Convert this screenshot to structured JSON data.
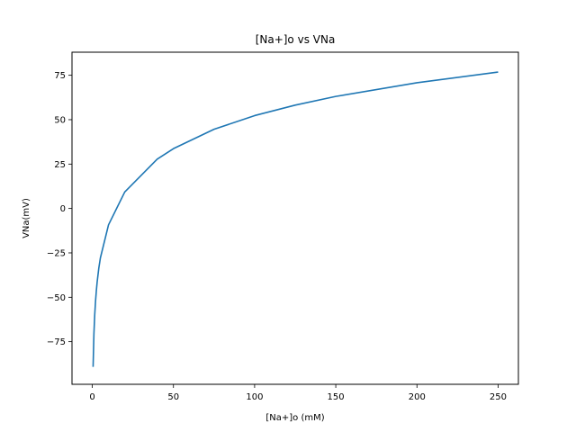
{
  "chart_data": {
    "type": "line",
    "title": "[Na+]o vs VNa",
    "xlabel": "[Na+]o (mM)",
    "ylabel": "VNa(mV)",
    "xlim": [
      -12.5,
      262.5
    ],
    "ylim": [
      -99,
      88
    ],
    "xticks": [
      0,
      50,
      100,
      150,
      200,
      250
    ],
    "yticks": [
      -75,
      -50,
      -25,
      0,
      25,
      50,
      75
    ],
    "grid": false,
    "legend": "none",
    "series": [
      {
        "color": "#1f77b4",
        "x": [
          0.5,
          1,
          1.5,
          2,
          2.5,
          3,
          4,
          5,
          10,
          20,
          40,
          50,
          75,
          100,
          125,
          150,
          200,
          250
        ],
        "y": [
          -89.2,
          -70.7,
          -59.9,
          -52.2,
          -46.3,
          -41.4,
          -33.7,
          -27.8,
          -9.2,
          9.3,
          27.8,
          33.7,
          44.6,
          52.3,
          58.2,
          63.1,
          70.8,
          76.8
        ]
      }
    ]
  }
}
